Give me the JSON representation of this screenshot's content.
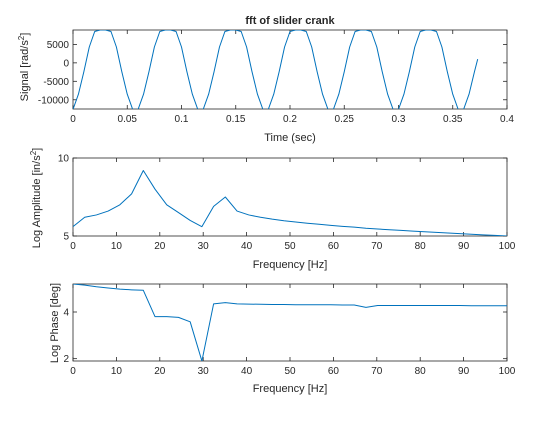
{
  "figure": {
    "background": "#ffffff",
    "line_color": "#0072bd",
    "axis_color": "#262626"
  },
  "chart_data": [
    {
      "type": "line",
      "title": "fft of slider crank",
      "xlabel": "Time (sec)",
      "ylabel": "Signal [rad/s",
      "ylabel_sup": "2",
      "ylabel_end": "]",
      "xlim": [
        0,
        0.4
      ],
      "ylim": [
        -12500,
        8900
      ],
      "xticks": [
        0,
        0.05,
        0.1,
        0.15,
        0.2,
        0.25,
        0.3,
        0.35,
        0.4
      ],
      "xtick_labels": [
        "0",
        "0.05",
        "0.1",
        "0.15",
        "0.2",
        "0.25",
        "0.3",
        "0.35",
        "0.4"
      ],
      "yticks": [
        -10000,
        -5000,
        0,
        5000
      ],
      "ytick_labels": [
        "-10000",
        "-5000",
        "0",
        "5000"
      ],
      "series": [
        {
          "x": [
            0,
            0.005,
            0.01,
            0.015,
            0.02,
            0.025,
            0.03,
            0.035,
            0.04,
            0.045,
            0.05,
            0.055,
            0.06,
            0.065,
            0.07,
            0.075,
            0.08,
            0.085,
            0.09,
            0.095,
            0.1,
            0.105,
            0.11,
            0.115,
            0.12,
            0.125,
            0.13,
            0.135,
            0.14,
            0.145,
            0.15,
            0.155,
            0.16,
            0.165,
            0.17,
            0.175,
            0.18,
            0.185,
            0.19,
            0.195,
            0.2,
            0.205,
            0.21,
            0.215,
            0.22,
            0.225,
            0.23,
            0.235,
            0.24,
            0.245,
            0.25,
            0.255,
            0.26,
            0.265,
            0.27,
            0.275,
            0.28,
            0.285,
            0.29,
            0.295,
            0.3,
            0.305,
            0.31,
            0.315,
            0.32,
            0.325,
            0.33,
            0.335,
            0.34,
            0.345,
            0.35,
            0.355,
            0.36,
            0.365,
            0.37,
            0.373
          ],
          "y": [
            -12600,
            -8500,
            -2400,
            4300,
            8500,
            8900,
            8900,
            8500,
            4300,
            -2400,
            -8500,
            -12600,
            -12600,
            -8500,
            -2400,
            4300,
            8500,
            8900,
            8900,
            8500,
            4300,
            -2400,
            -8500,
            -12600,
            -12600,
            -8500,
            -2400,
            4300,
            8500,
            8900,
            8900,
            8500,
            4300,
            -2400,
            -8500,
            -12600,
            -12600,
            -8500,
            -2400,
            4300,
            8500,
            8900,
            8900,
            8500,
            4300,
            -2400,
            -8500,
            -12600,
            -12600,
            -8500,
            -2400,
            4300,
            8500,
            8900,
            8900,
            8500,
            4300,
            -2400,
            -8500,
            -12600,
            -12600,
            -8500,
            -2400,
            4300,
            8500,
            8900,
            8900,
            8500,
            4300,
            -2400,
            -8500,
            -12600,
            -12600,
            -8500,
            -2400,
            1000
          ]
        }
      ]
    },
    {
      "type": "line",
      "title": "",
      "xlabel": "Frequency [Hz]",
      "ylabel": "Log Amplitude [in/s",
      "ylabel_sup": "2",
      "ylabel_end": "]",
      "xlim": [
        0,
        100
      ],
      "ylim": [
        5,
        10
      ],
      "xticks": [
        0,
        10,
        20,
        30,
        40,
        50,
        60,
        70,
        80,
        90,
        100
      ],
      "xtick_labels": [
        "0",
        "10",
        "20",
        "30",
        "40",
        "50",
        "60",
        "70",
        "80",
        "90",
        "100"
      ],
      "yticks": [
        5,
        10
      ],
      "ytick_labels": [
        "5",
        "10"
      ],
      "series": [
        {
          "x": [
            0,
            2.7,
            5.4,
            8.1,
            10.8,
            13.5,
            16.2,
            18.9,
            21.6,
            24.3,
            27,
            29.7,
            32.4,
            35.1,
            37.8,
            40.5,
            43.2,
            45.9,
            48.6,
            51.3,
            54,
            56.7,
            59.4,
            62.1,
            64.8,
            67.5,
            70.2,
            72.9,
            75.6,
            78.3,
            81,
            83.7,
            86.4,
            89.1,
            91.8,
            94.5,
            97.2,
            100
          ],
          "y": [
            5.6,
            6.2,
            6.35,
            6.6,
            7.0,
            7.7,
            9.2,
            8.0,
            7.0,
            6.5,
            6.0,
            5.6,
            6.9,
            7.5,
            6.6,
            6.35,
            6.2,
            6.08,
            5.98,
            5.9,
            5.82,
            5.75,
            5.68,
            5.62,
            5.57,
            5.5,
            5.45,
            5.4,
            5.36,
            5.31,
            5.27,
            5.23,
            5.19,
            5.15,
            5.11,
            5.07,
            5.04,
            5.0
          ]
        }
      ]
    },
    {
      "type": "line",
      "title": "",
      "xlabel": "Frequency [Hz]",
      "ylabel": "Log Phase [deg]",
      "ylabel_sup": "",
      "ylabel_end": "",
      "xlim": [
        0,
        100
      ],
      "ylim": [
        1.9,
        5.2
      ],
      "xticks": [
        0,
        10,
        20,
        30,
        40,
        50,
        60,
        70,
        80,
        90,
        100
      ],
      "xtick_labels": [
        "0",
        "10",
        "20",
        "30",
        "40",
        "50",
        "60",
        "70",
        "80",
        "90",
        "100"
      ],
      "yticks": [
        2,
        4
      ],
      "ytick_labels": [
        "2",
        "4"
      ],
      "series": [
        {
          "x": [
            0,
            2.7,
            5.4,
            8.1,
            10.8,
            13.5,
            16.2,
            18.9,
            21.6,
            24.3,
            27,
            29.7,
            32.4,
            35.1,
            37.8,
            40.5,
            43.2,
            45.9,
            48.6,
            51.3,
            54,
            56.7,
            59.4,
            62.1,
            64.8,
            67.5,
            70.2,
            72.9,
            75.6,
            78.3,
            81,
            83.7,
            86.4,
            89.1,
            91.8,
            94.5,
            97.2,
            100
          ],
          "y": [
            5.2,
            5.15,
            5.08,
            5.03,
            4.98,
            4.95,
            4.93,
            3.8,
            3.8,
            3.77,
            3.58,
            1.9,
            4.35,
            4.4,
            4.35,
            4.34,
            4.33,
            4.32,
            4.32,
            4.31,
            4.31,
            4.31,
            4.31,
            4.3,
            4.3,
            4.2,
            4.28,
            4.28,
            4.28,
            4.28,
            4.28,
            4.28,
            4.28,
            4.28,
            4.27,
            4.27,
            4.27,
            4.27
          ]
        }
      ]
    }
  ]
}
